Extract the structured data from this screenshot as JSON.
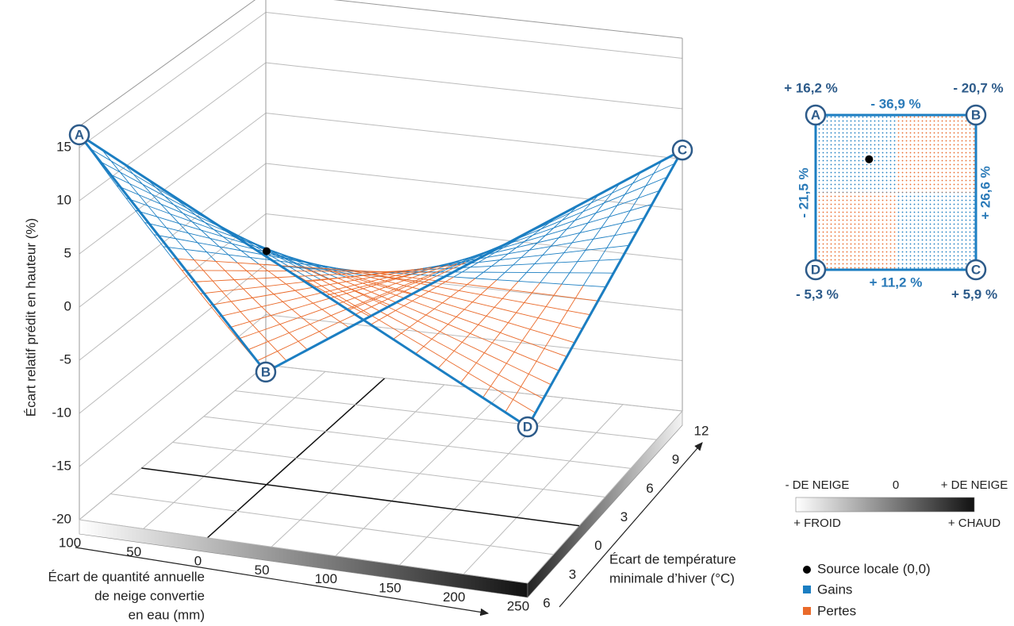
{
  "chart_data": {
    "type": "surface",
    "z_label": "Écart relatif prédit en hauteur (%)",
    "x_label": [
      "Écart de quantité annuelle",
      "de neige convertie",
      "en eau (mm)"
    ],
    "y_label": [
      "Écart de température",
      "minimale d’hiver (°C)"
    ],
    "xlim": [
      -100,
      250
    ],
    "xticks": [
      {
        "value": -100,
        "label": "100"
      },
      {
        "value": -50,
        "label": "50"
      },
      0,
      50,
      100,
      150,
      200,
      250
    ],
    "ylim": [
      -6,
      12
    ],
    "yticks": [
      {
        "value": -6,
        "label": "6"
      },
      {
        "value": -3,
        "label": "3"
      },
      0,
      3,
      6,
      9,
      12
    ],
    "zlim": [
      -20,
      17
    ],
    "zticks": [
      -20,
      -15,
      -10,
      -5,
      0,
      5,
      10,
      15
    ],
    "corners": {
      "labels": [
        "A",
        "B",
        "C",
        "D"
      ],
      "values": [
        16.2,
        -20.7,
        5.9,
        -5.3
      ],
      "value_labels": [
        "+ 16,2 %",
        "- 20,7 %",
        "+ 5,9 %",
        "- 5,3 %"
      ]
    },
    "edges": {
      "values": [
        -36.9,
        26.6,
        11.2,
        -21.5
      ],
      "value_labels": [
        "- 36,9 %",
        "+ 26,6 %",
        "+ 11,2 %",
        "- 21,5 %"
      ]
    },
    "source": {
      "label": "Source locale (0,0)",
      "x": 0,
      "y": 0
    },
    "series": [
      {
        "name": "Gains",
        "color": "#1b7ec2"
      },
      {
        "name": "Pertes",
        "color": "#ea6a2a"
      }
    ],
    "colorbar": {
      "top": [
        "- DE NEIGE",
        "0",
        "+ DE NEIGE"
      ],
      "bottom": [
        "+ FROID",
        "+ CHAUD"
      ]
    }
  }
}
